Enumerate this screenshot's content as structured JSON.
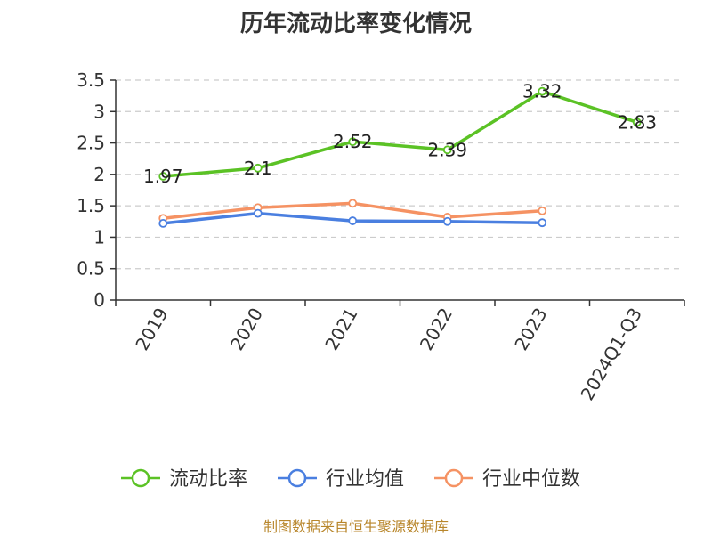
{
  "chart_data": {
    "type": "line",
    "title": "历年流动比率变化情况",
    "categories": [
      "2019",
      "2020",
      "2021",
      "2022",
      "2023",
      "2024Q1-Q3"
    ],
    "ylim": [
      0,
      3.5
    ],
    "yticks": [
      "0",
      "0.5",
      "1",
      "1.5",
      "2",
      "2.5",
      "3",
      "3.5"
    ],
    "grid": true,
    "legend_position": "bottom",
    "series": [
      {
        "name": "流动比率",
        "color": "#5bc225",
        "values": [
          1.97,
          2.1,
          2.52,
          2.39,
          3.32,
          2.83
        ],
        "labels": [
          "1.97",
          "2.1",
          "2.52",
          "2.39",
          "3.32",
          "2.83"
        ]
      },
      {
        "name": "行业均值",
        "color": "#4a7fe0",
        "values": [
          1.22,
          1.38,
          1.26,
          1.25,
          1.23,
          null
        ]
      },
      {
        "name": "行业中位数",
        "color": "#f59263",
        "values": [
          1.3,
          1.47,
          1.54,
          1.32,
          1.42,
          null
        ]
      }
    ]
  },
  "source": "制图数据来自恒生聚源数据库"
}
